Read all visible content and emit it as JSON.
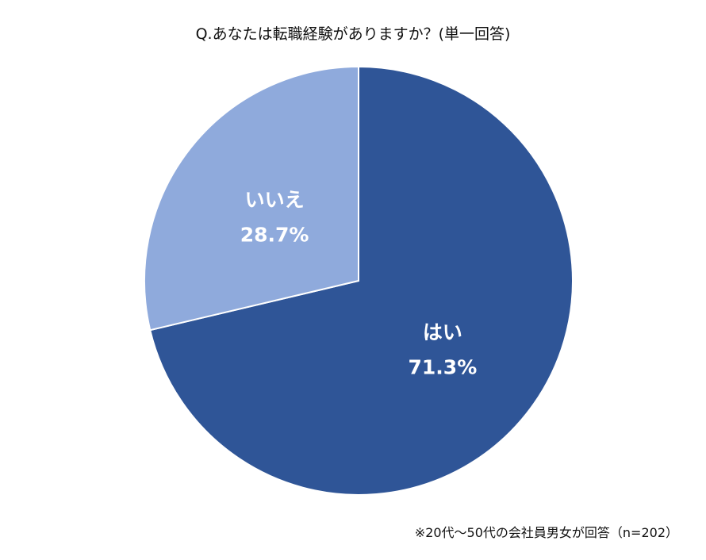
{
  "chart_data": {
    "type": "pie",
    "title": "Q.あなたは転職経験がありますか？(単一回答)",
    "slices": [
      {
        "label": "はい",
        "value": 71.3,
        "value_label": "71.3%",
        "color": "#2F5597"
      },
      {
        "label": "いいえ",
        "value": 28.7,
        "value_label": "28.7%",
        "color": "#8FAADC"
      }
    ],
    "start": "12 o'clock",
    "direction": "clockwise",
    "legend": "none",
    "footnote": "※20代～50代の会社員男女が回答（n=202）"
  }
}
